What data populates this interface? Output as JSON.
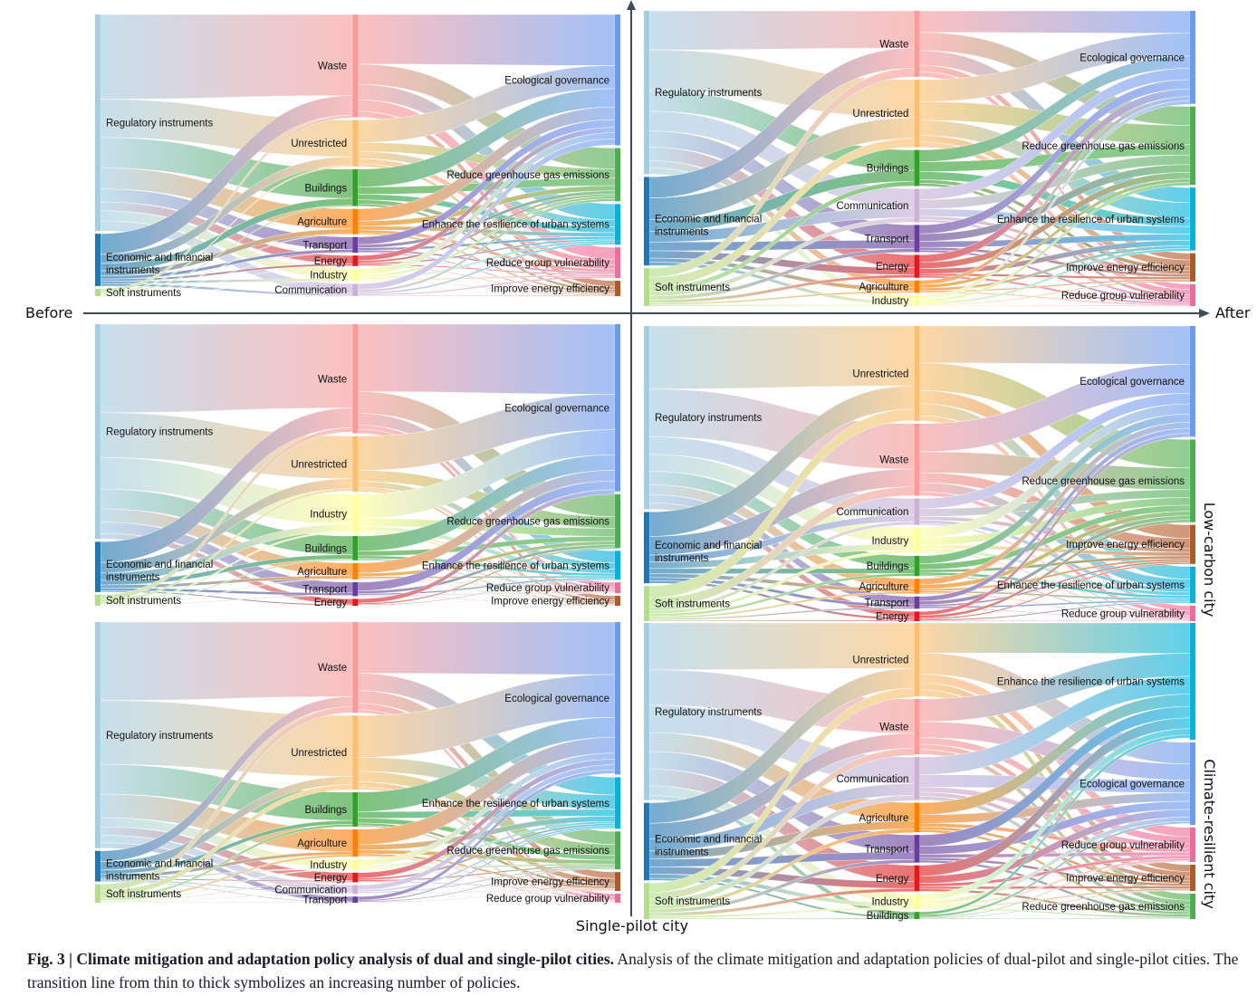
{
  "chart_data": {
    "type": "sankey",
    "title": "Climate mitigation and adaptation policy analysis of dual and single-pilot cities",
    "axes": {
      "left_label": "Before",
      "right_label": "After",
      "bottom_label": "Single-pilot city",
      "right_side_labels": [
        "Low-carbon city",
        "Climate-resilient city"
      ]
    },
    "node_colors": {
      "Regulatory instruments": "#a6cee3",
      "Economic and financial instruments": "#1f78b4",
      "Soft instruments": "#b2df8a",
      "Waste": "#fb9a99",
      "Unrestricted": "#fdbf6f",
      "Buildings": "#33a02c",
      "Agriculture": "#ff7f00",
      "Transport": "#6a3d9a",
      "Energy": "#e31a1c",
      "Industry": "#ffff99",
      "Communication": "#cab2d6",
      "Ecological governance": "#6a9cf5",
      "Reduce greenhouse gas emissions": "#4caf50",
      "Enhance the resilience of urban systems": "#00b4e0",
      "Reduce group vulnerability": "#f06a9a",
      "Improve energy efficiency": "#b15928"
    },
    "panels": [
      {
        "id": "before-dual",
        "position": "top-left",
        "period": "Before",
        "sources": [
          {
            "name": "Regulatory instruments",
            "value": 236
          },
          {
            "name": "Economic and financial instruments",
            "value": 57
          },
          {
            "name": "Soft instruments",
            "value": 8
          }
        ],
        "middle": [
          {
            "name": "Waste",
            "value": 117
          },
          {
            "name": "Unrestricted",
            "value": 53
          },
          {
            "name": "Buildings",
            "value": 42
          },
          {
            "name": "Agriculture",
            "value": 29
          },
          {
            "name": "Transport",
            "value": 18
          },
          {
            "name": "Energy",
            "value": 12
          },
          {
            "name": "Industry",
            "value": 14
          },
          {
            "name": "Communication",
            "value": 14
          }
        ],
        "targets": [
          {
            "name": "Ecological governance",
            "value": 145
          },
          {
            "name": "Reduce greenhouse gas emissions",
            "value": 59
          },
          {
            "name": "Enhance the resilience of urban systems",
            "value": 45
          },
          {
            "name": "Reduce group vulnerability",
            "value": 34
          },
          {
            "name": "Improve energy efficiency",
            "value": 17
          }
        ]
      },
      {
        "id": "after-dual",
        "position": "top-right",
        "period": "After",
        "sources": [
          {
            "name": "Regulatory instruments",
            "value": 177
          },
          {
            "name": "Economic and financial instruments",
            "value": 96
          },
          {
            "name": "Soft instruments",
            "value": 41
          }
        ],
        "middle": [
          {
            "name": "Waste",
            "value": 75
          },
          {
            "name": "Unrestricted",
            "value": 77
          },
          {
            "name": "Buildings",
            "value": 41
          },
          {
            "name": "Communication",
            "value": 38
          },
          {
            "name": "Transport",
            "value": 31
          },
          {
            "name": "Energy",
            "value": 26
          },
          {
            "name": "Agriculture",
            "value": 14
          },
          {
            "name": "Industry",
            "value": 12
          }
        ],
        "targets": [
          {
            "name": "Ecological governance",
            "value": 102
          },
          {
            "name": "Reduce greenhouse gas emissions",
            "value": 86
          },
          {
            "name": "Enhance the resilience of urban systems",
            "value": 69
          },
          {
            "name": "Improve energy efficiency",
            "value": 31
          },
          {
            "name": "Reduce group vulnerability",
            "value": 24
          }
        ]
      },
      {
        "id": "before-low-carbon",
        "position": "middle-left",
        "period": "Before",
        "sources": [
          {
            "name": "Regulatory instruments",
            "value": 235
          },
          {
            "name": "Economic and financial instruments",
            "value": 55
          },
          {
            "name": "Soft instruments",
            "value": 12
          }
        ],
        "middle": [
          {
            "name": "Waste",
            "value": 126
          },
          {
            "name": "Unrestricted",
            "value": 64
          },
          {
            "name": "Industry",
            "value": 45
          },
          {
            "name": "Buildings",
            "value": 28
          },
          {
            "name": "Agriculture",
            "value": 19
          },
          {
            "name": "Transport",
            "value": 16
          },
          {
            "name": "Energy",
            "value": 8
          }
        ],
        "targets": [
          {
            "name": "Ecological governance",
            "value": 186
          },
          {
            "name": "Reduce greenhouse gas emissions",
            "value": 60
          },
          {
            "name": "Enhance the resilience of urban systems",
            "value": 32
          },
          {
            "name": "Reduce group vulnerability",
            "value": 12
          },
          {
            "name": "Improve energy efficiency",
            "value": 11
          }
        ]
      },
      {
        "id": "after-low-carbon",
        "position": "middle-right",
        "period": "After",
        "sources": [
          {
            "name": "Regulatory instruments",
            "value": 198
          },
          {
            "name": "Economic and financial instruments",
            "value": 77
          },
          {
            "name": "Soft instruments",
            "value": 38
          }
        ],
        "middle": [
          {
            "name": "Unrestricted",
            "value": 108
          },
          {
            "name": "Waste",
            "value": 82
          },
          {
            "name": "Communication",
            "value": 30
          },
          {
            "name": "Industry",
            "value": 29
          },
          {
            "name": "Buildings",
            "value": 23
          },
          {
            "name": "Agriculture",
            "value": 17
          },
          {
            "name": "Transport",
            "value": 14
          },
          {
            "name": "Energy",
            "value": 11
          }
        ],
        "targets": [
          {
            "name": "Ecological governance",
            "value": 122
          },
          {
            "name": "Reduce greenhouse gas emissions",
            "value": 91
          },
          {
            "name": "Improve energy efficiency",
            "value": 43
          },
          {
            "name": "Enhance the resilience of urban systems",
            "value": 40
          },
          {
            "name": "Reduce group vulnerability",
            "value": 17
          }
        ]
      },
      {
        "id": "before-climate-resilient",
        "position": "bottom-left",
        "period": "Before",
        "sources": [
          {
            "name": "Regulatory instruments",
            "value": 244
          },
          {
            "name": "Economic and financial instruments",
            "value": 33
          },
          {
            "name": "Soft instruments",
            "value": 20
          }
        ],
        "middle": [
          {
            "name": "Waste",
            "value": 103
          },
          {
            "name": "Unrestricted",
            "value": 84
          },
          {
            "name": "Buildings",
            "value": 39
          },
          {
            "name": "Agriculture",
            "value": 31
          },
          {
            "name": "Industry",
            "value": 12
          },
          {
            "name": "Energy",
            "value": 11
          },
          {
            "name": "Communication",
            "value": 10
          },
          {
            "name": "Transport",
            "value": 7
          }
        ],
        "targets": [
          {
            "name": "Ecological governance",
            "value": 169
          },
          {
            "name": "Enhance the resilience of urban systems",
            "value": 57
          },
          {
            "name": "Reduce greenhouse gas emissions",
            "value": 42
          },
          {
            "name": "Improve energy efficiency",
            "value": 21
          },
          {
            "name": "Reduce group vulnerability",
            "value": 10
          }
        ]
      },
      {
        "id": "after-climate-resilient",
        "position": "bottom-right",
        "period": "After",
        "sources": [
          {
            "name": "Regulatory instruments",
            "value": 192
          },
          {
            "name": "Economic and financial instruments",
            "value": 84
          },
          {
            "name": "Soft instruments",
            "value": 39
          }
        ],
        "middle": [
          {
            "name": "Unrestricted",
            "value": 82
          },
          {
            "name": "Waste",
            "value": 62
          },
          {
            "name": "Communication",
            "value": 48
          },
          {
            "name": "Agriculture",
            "value": 33
          },
          {
            "name": "Transport",
            "value": 31
          },
          {
            "name": "Energy",
            "value": 29
          },
          {
            "name": "Industry",
            "value": 17
          },
          {
            "name": "Buildings",
            "value": 8
          }
        ],
        "targets": [
          {
            "name": "Enhance the resilience of urban systems",
            "value": 129
          },
          {
            "name": "Ecological governance",
            "value": 91
          },
          {
            "name": "Reduce group vulnerability",
            "value": 38
          },
          {
            "name": "Improve energy efficiency",
            "value": 29
          },
          {
            "name": "Reduce greenhouse gas emissions",
            "value": 28
          }
        ]
      }
    ]
  },
  "caption": {
    "fig_label": "Fig. 3 | ",
    "title": "Climate mitigation and adaptation policy analysis of dual and single-pilot cities.",
    "body": " Analysis of the climate mitigation and adaptation policies of dual-pilot and single-pilot cities. The transition line from thin to thick symbolizes an increasing number of policies."
  }
}
